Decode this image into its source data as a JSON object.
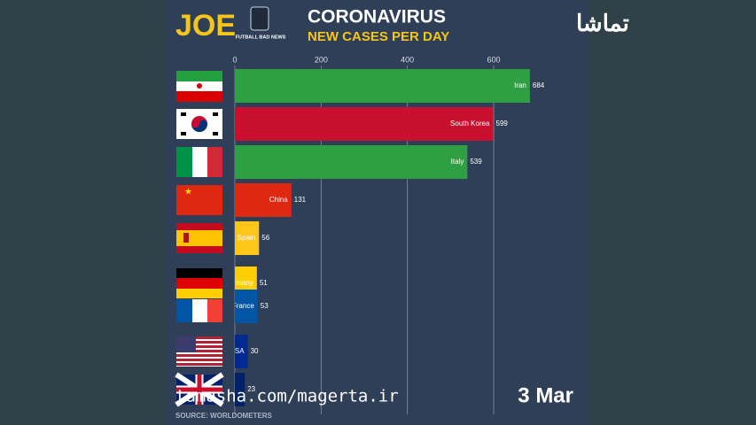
{
  "chart_data": {
    "type": "bar",
    "orientation": "horizontal",
    "brand": "JOE",
    "logo": "FUTBALL BAD NEWS",
    "watermark": "تماشا",
    "title": "CORONAVIRUS",
    "subtitle": "NEW CASES PER DAY",
    "categories": [
      "Iran",
      "South Korea",
      "Italy",
      "China",
      "Spain",
      "Germany",
      "France",
      "USA",
      null
    ],
    "values": [
      684,
      599,
      539,
      131,
      56,
      51,
      53,
      30,
      23
    ],
    "colors": [
      "#2ea043",
      "#c8102e",
      "#2ea043",
      "#de2910",
      "#ffc61a",
      "#ffce00",
      "#0055a4",
      "#002a8f",
      "#012169"
    ],
    "xlim": [
      0,
      700
    ],
    "xticks": [
      0,
      200,
      400,
      600
    ],
    "grid": true,
    "url": "tamasha.com/magerta.ir",
    "date": "3 Mar",
    "source": "SOURCE: WORLDOMETERS"
  }
}
